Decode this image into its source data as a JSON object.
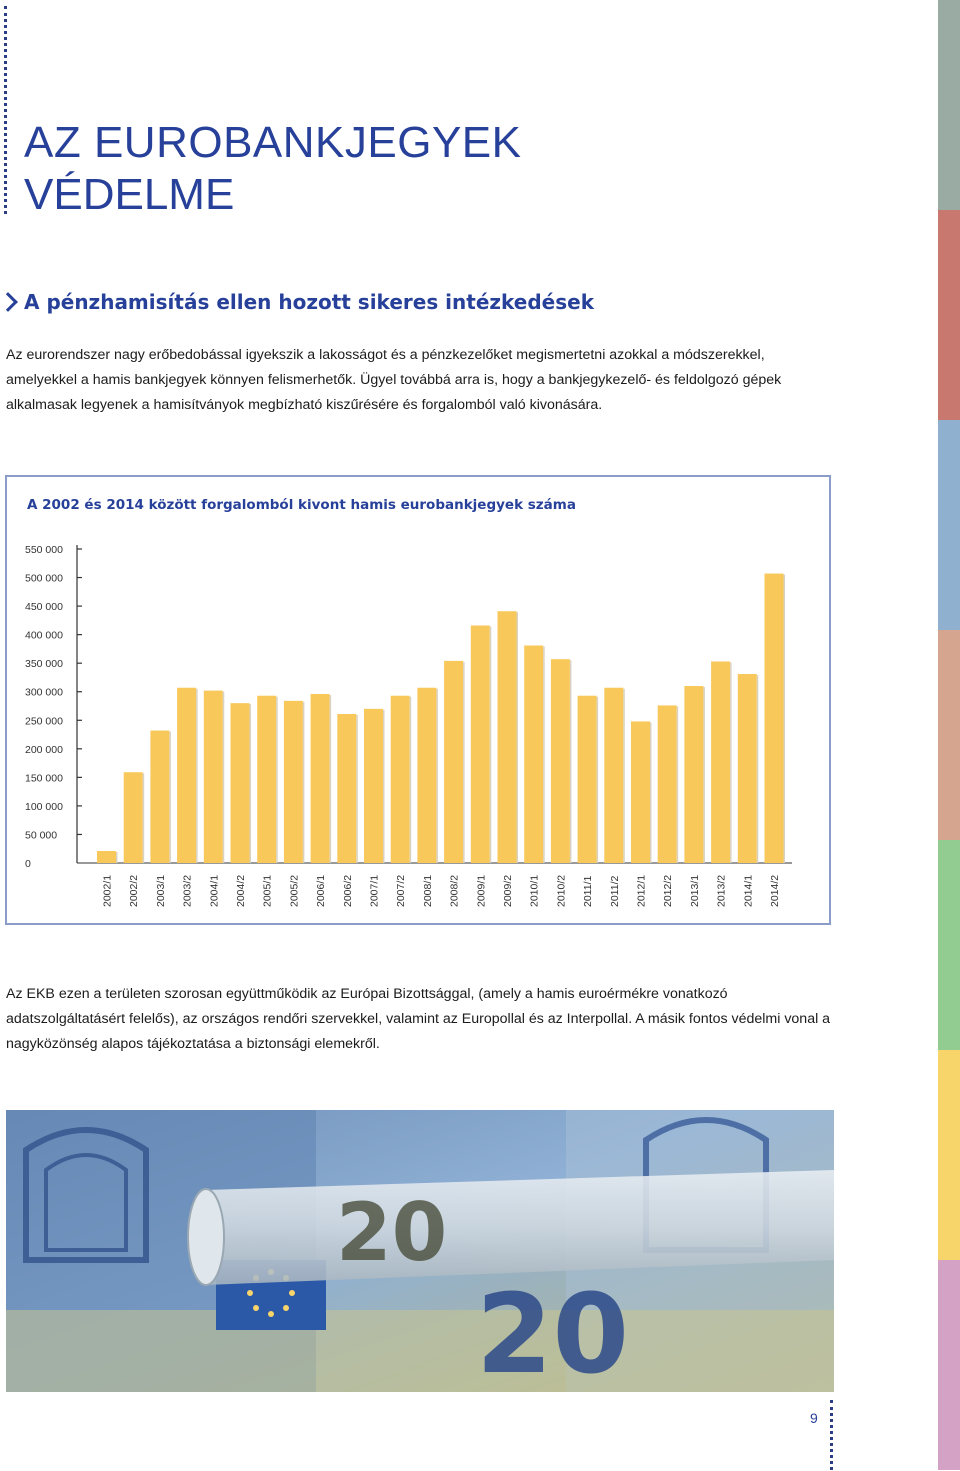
{
  "title": {
    "line1": "AZ EUROBANKJEGYEK",
    "line2": "VÉDELME"
  },
  "section_heading": "A pénzhamisítás ellen hozott sikeres intézkedések",
  "paragraph1": "Az eurorendszer nagy erőbedobással igyekszik a lakosságot és a pénzkezelőket megismertetni azokkal a módszerekkel, amelyekkel a hamis bankjegyek könnyen felismerhetők. Ügyel továbbá arra is, hogy a bankjegykezelő- és feldolgozó gépek alkalmasak legyenek a hamisítványok megbízható kiszűrésére és forgalomból való kivonására.",
  "paragraph2": "Az EKB ezen a területen szorosan együttműködik az Európai Bizottsággal, (amely a hamis euroérmékre vonatkozó adatszolgáltatásért felelős), az országos rendőri szervekkel, valamint az Europollal és az Interpollal. A másik fontos védelmi vonal a nagyközönség alapos tájékoztatása a biztonsági elemekről.",
  "page_number": "9",
  "colors": {
    "brand_blue": "#27409a",
    "bar": "#f8c95a",
    "strip": [
      "#9aaba3",
      "#c9786f",
      "#8fb0cf",
      "#d6a58f",
      "#92cc90",
      "#f8d56a",
      "#d3a2c4"
    ]
  },
  "chart_data": {
    "type": "bar",
    "title": "A 2002 és 2014 között forgalomból kivont hamis eurobankjegyek száma",
    "categories": [
      "2002/1",
      "2002/2",
      "2003/1",
      "2003/2",
      "2004/1",
      "2004/2",
      "2005/1",
      "2005/2",
      "2006/1",
      "2006/2",
      "2007/1",
      "2007/2",
      "2008/1",
      "2008/2",
      "2009/1",
      "2009/2",
      "2010/1",
      "2010/2",
      "2011/1",
      "2011/2",
      "2012/1",
      "2012/2",
      "2013/1",
      "2013/2",
      "2014/1",
      "2014/2"
    ],
    "values": [
      21000,
      159000,
      232000,
      307000,
      302000,
      280000,
      293000,
      284000,
      296000,
      261000,
      270000,
      293000,
      307000,
      354000,
      416000,
      441000,
      381000,
      357000,
      293000,
      307000,
      248000,
      276000,
      310000,
      353000,
      331000,
      507000
    ],
    "yticks": [
      "550 000",
      "500 000",
      "450 000",
      "400 000",
      "350 000",
      "300 000",
      "250 000",
      "200 000",
      "150 000",
      "100 000",
      "50 000",
      "0"
    ],
    "ylim": [
      0,
      550000
    ],
    "grid": false
  }
}
